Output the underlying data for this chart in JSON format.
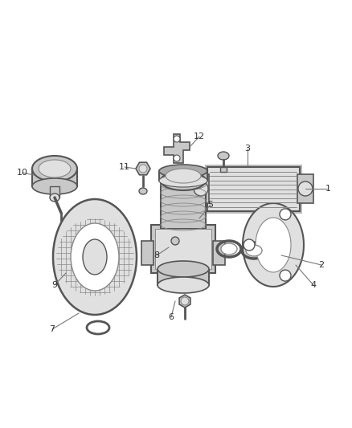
{
  "bg_color": "#ffffff",
  "fig_width": 4.38,
  "fig_height": 5.33,
  "dpi": 100,
  "gray_dark": "#555555",
  "gray_mid": "#888888",
  "gray_light": "#aaaaaa",
  "gray_fill": "#c8c8c8",
  "gray_light2": "#e0e0e0",
  "white": "#ffffff",
  "label_color": "#333333",
  "line_color": "#777777"
}
